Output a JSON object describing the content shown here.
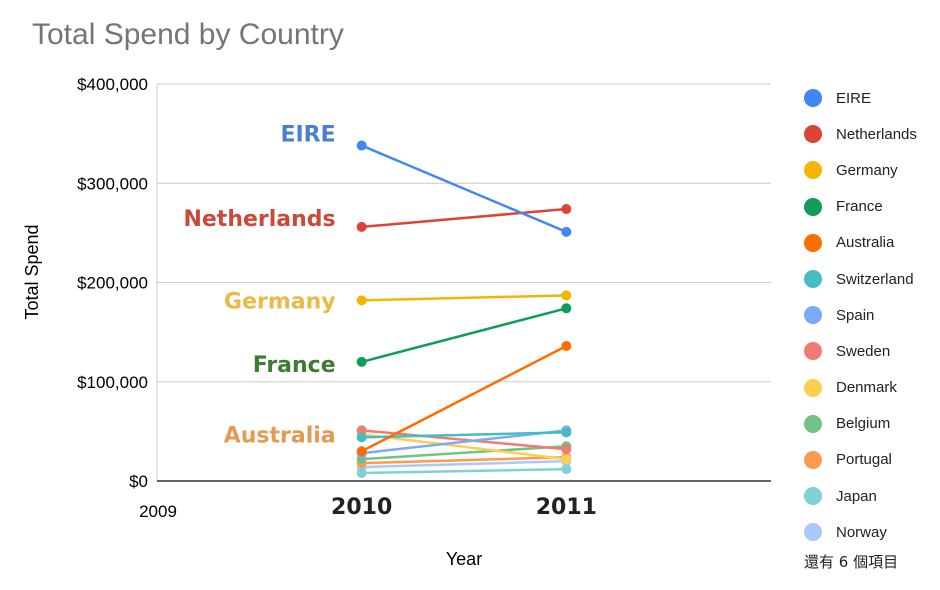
{
  "chart_data": {
    "type": "line",
    "title": "Total Spend by Country",
    "xlabel": "Year",
    "ylabel": "Total Spend",
    "x": [
      2010,
      2011
    ],
    "x_ticks": [
      "2009",
      "2010",
      "2011"
    ],
    "xlim": [
      2009,
      2012
    ],
    "ylim": [
      0,
      400000
    ],
    "y_ticks": [
      "$0",
      "$100,000",
      "$200,000",
      "$300,000",
      "$400,000"
    ],
    "grid": true,
    "legend_position": "right",
    "series": [
      {
        "name": "EIRE",
        "color": "#4285f4",
        "values": [
          338000,
          251000
        ]
      },
      {
        "name": "Netherlands",
        "color": "#db4437",
        "values": [
          256000,
          274000
        ]
      },
      {
        "name": "Germany",
        "color": "#f4b400",
        "values": [
          182000,
          187000
        ]
      },
      {
        "name": "France",
        "color": "#0f9d58",
        "values": [
          120000,
          174000
        ]
      },
      {
        "name": "Australia",
        "color": "#ff6d00",
        "values": [
          30000,
          136000
        ]
      },
      {
        "name": "Switzerland",
        "color": "#46bdc6",
        "values": [
          44000,
          49000
        ]
      },
      {
        "name": "Spain",
        "color": "#7baaf7",
        "values": [
          28000,
          51000
        ]
      },
      {
        "name": "Sweden",
        "color": "#f07b72",
        "values": [
          51000,
          32000
        ]
      },
      {
        "name": "Denmark",
        "color": "#fcd04f",
        "values": [
          47000,
          22000
        ]
      },
      {
        "name": "Belgium",
        "color": "#71c287",
        "values": [
          22000,
          35000
        ]
      },
      {
        "name": "Portugal",
        "color": "#ff994d",
        "values": [
          18000,
          24000
        ]
      },
      {
        "name": "Japan",
        "color": "#7ed1d7",
        "values": [
          8000,
          12000
        ]
      },
      {
        "name": "Norway",
        "color": "#abc8fb",
        "values": [
          14000,
          20000
        ]
      }
    ],
    "annotations": [
      {
        "text": "EIRE",
        "color": "#4a7fd1",
        "value": 350000
      },
      {
        "text": "Netherlands",
        "color": "#c9493a",
        "value": 265000
      },
      {
        "text": "Germany",
        "color": "#eab947",
        "value": 182000
      },
      {
        "text": "France",
        "color": "#3f7a33",
        "value": 118000
      },
      {
        "text": "Australia",
        "color": "#e59a52",
        "value": 47000
      }
    ],
    "legend_more": "還有 6 個項目"
  }
}
